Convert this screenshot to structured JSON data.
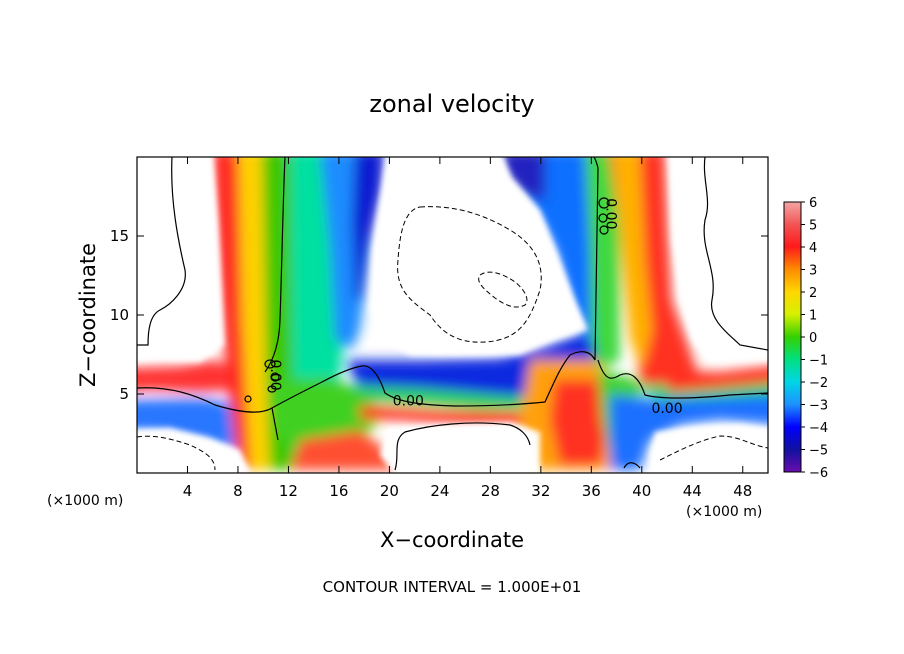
{
  "chart_data": {
    "type": "heatmap",
    "title": "zonal velocity",
    "xlabel": "X−coordinate",
    "ylabel": "Z−coordinate",
    "x_unit": "(×1000 m)",
    "z_unit": "(×1000 m)",
    "xlim": [
      0,
      50
    ],
    "ylim": [
      0,
      20
    ],
    "xticks": [
      4,
      8,
      12,
      16,
      20,
      24,
      28,
      32,
      36,
      40,
      44,
      48
    ],
    "yticks": [
      5,
      10,
      15
    ],
    "colorbar": {
      "min": -6,
      "max": 6,
      "ticks": [
        "6",
        "5",
        "4",
        "3",
        "2",
        "1",
        "0",
        "−1",
        "−2",
        "−3",
        "−4",
        "−5",
        "−6"
      ]
    },
    "contour_labels": [
      {
        "text": "0.00",
        "x": 21.5,
        "z": 4.6
      },
      {
        "text": "0.00",
        "x": 42.0,
        "z": 4.1
      },
      {
        "text": "0.00",
        "x": 10.6,
        "z": 6.2
      },
      {
        "text": "0.00",
        "x": 37.2,
        "z": 16.4
      }
    ],
    "footer": "CONTOUR INTERVAL = 1.000E+01"
  },
  "colors": {
    "background": "#ffffff",
    "axes": "#000000"
  }
}
